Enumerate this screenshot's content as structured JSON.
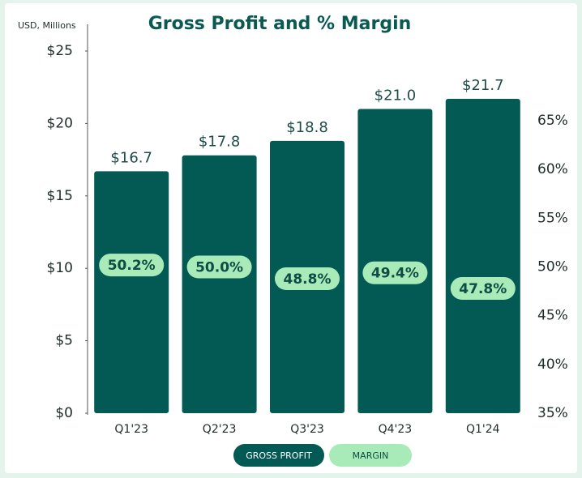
{
  "chart_data": {
    "type": "bar",
    "title": "Gross Profit and % Margin",
    "y_axis_label": "USD, Millions",
    "categories": [
      "Q1'23",
      "Q2'23",
      "Q3'23",
      "Q4'23",
      "Q1'24"
    ],
    "series": [
      {
        "name": "GROSS PROFIT",
        "color": "#035a55",
        "values": [
          16.7,
          17.8,
          18.8,
          21.0,
          21.7
        ],
        "value_labels": [
          "$16.7",
          "$17.8",
          "$18.8",
          "$21.0",
          "$21.7"
        ]
      },
      {
        "name": "MARGIN",
        "color": "#a8ebb8",
        "axis": "y2",
        "values": [
          50.2,
          50.0,
          48.8,
          49.4,
          47.8
        ],
        "value_labels": [
          "50.2%",
          "50.0%",
          "48.8%",
          "49.4%",
          "47.8%"
        ]
      }
    ],
    "ylim": [
      0,
      25
    ],
    "yticks": [
      {
        "value": 0,
        "label": "$0"
      },
      {
        "value": 5,
        "label": "$5"
      },
      {
        "value": 10,
        "label": "$10"
      },
      {
        "value": 15,
        "label": "$15"
      },
      {
        "value": 20,
        "label": "$20"
      },
      {
        "value": 25,
        "label": "$25"
      }
    ],
    "y2lim": [
      35,
      65
    ],
    "y2ticks": [
      {
        "value": 35,
        "label": "35%"
      },
      {
        "value": 40,
        "label": "40%"
      },
      {
        "value": 45,
        "label": "45%"
      },
      {
        "value": 50,
        "label": "50%"
      },
      {
        "value": 55,
        "label": "55%"
      },
      {
        "value": 60,
        "label": "60%"
      },
      {
        "value": 65,
        "label": "65%"
      }
    ]
  }
}
